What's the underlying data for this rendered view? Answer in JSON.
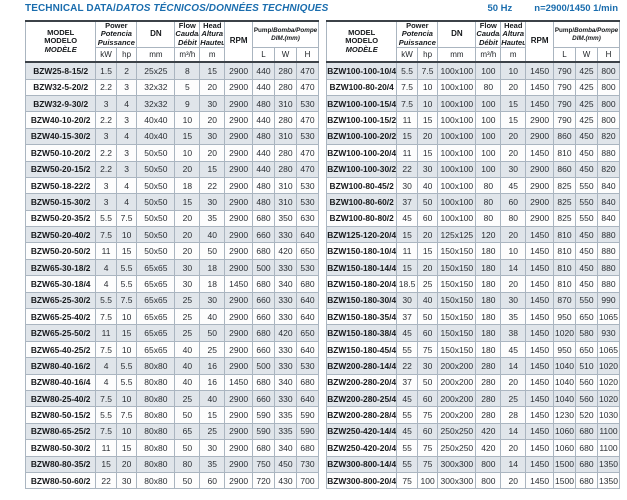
{
  "title": {
    "en": "TECHNICAL DATA/",
    "intl": "DATOS TÉCNICOS/DONNÉES TECHNIQUES"
  },
  "notes": {
    "frequency": "50 Hz",
    "speed": "n=2900/1450 1/min"
  },
  "colors": {
    "accent_blue": "#1a6dae",
    "row_stripe": "#e0e5ea",
    "border_light": "#aab5c0",
    "border_dark": "#3c4248"
  },
  "columns": {
    "model": {
      "l1": "MODEL",
      "l2": "MODELO",
      "l3": "MODÈLE"
    },
    "power": {
      "l1": "Power",
      "l2": "Potencia",
      "l3": "Puissance",
      "units": [
        "kW",
        "hp"
      ]
    },
    "dn": {
      "label": "DN",
      "unit": "mm"
    },
    "flow": {
      "l1": "Flow",
      "l2": "Caudal",
      "l3": "Débit",
      "unit": "m³/h"
    },
    "head": {
      "l1": "Head",
      "l2": "Altura",
      "l3": "Hauteur",
      "unit": "m"
    },
    "rpm": {
      "label": "RPM"
    },
    "dim": {
      "en": "Pump/",
      "intl": "Bomba/Pompe",
      "l2": "DIM.(mm)",
      "units": [
        "L",
        "W",
        "H"
      ]
    }
  },
  "tables": [
    {
      "id": "left",
      "rows": [
        [
          "BZW25-8-15/2",
          "1.5",
          "2",
          "25x25",
          "8",
          "15",
          "2900",
          "440",
          "280",
          "470"
        ],
        [
          "BZW32-5-20/2",
          "2.2",
          "3",
          "32x32",
          "5",
          "20",
          "2900",
          "440",
          "280",
          "470"
        ],
        [
          "BZW32-9-30/2",
          "3",
          "4",
          "32x32",
          "9",
          "30",
          "2900",
          "480",
          "310",
          "530"
        ],
        [
          "BZW40-10-20/2",
          "2.2",
          "3",
          "40x40",
          "10",
          "20",
          "2900",
          "440",
          "280",
          "470"
        ],
        [
          "BZW40-15-30/2",
          "3",
          "4",
          "40x40",
          "15",
          "30",
          "2900",
          "480",
          "310",
          "530"
        ],
        [
          "BZW50-10-20/2",
          "2.2",
          "3",
          "50x50",
          "10",
          "20",
          "2900",
          "440",
          "280",
          "470"
        ],
        [
          "BZW50-20-15/2",
          "2.2",
          "3",
          "50x50",
          "20",
          "15",
          "2900",
          "440",
          "280",
          "470"
        ],
        [
          "BZW50-18-22/2",
          "3",
          "4",
          "50x50",
          "18",
          "22",
          "2900",
          "480",
          "310",
          "530"
        ],
        [
          "BZW50-15-30/2",
          "3",
          "4",
          "50x50",
          "15",
          "30",
          "2900",
          "480",
          "310",
          "530"
        ],
        [
          "BZW50-20-35/2",
          "5.5",
          "7.5",
          "50x50",
          "20",
          "35",
          "2900",
          "680",
          "350",
          "630"
        ],
        [
          "BZW50-20-40/2",
          "7.5",
          "10",
          "50x50",
          "20",
          "40",
          "2900",
          "660",
          "330",
          "640"
        ],
        [
          "BZW50-20-50/2",
          "11",
          "15",
          "50x50",
          "20",
          "50",
          "2900",
          "680",
          "420",
          "650"
        ],
        [
          "BZW65-30-18/2",
          "4",
          "5.5",
          "65x65",
          "30",
          "18",
          "2900",
          "500",
          "330",
          "530"
        ],
        [
          "BZW65-30-18/4",
          "4",
          "5.5",
          "65x65",
          "30",
          "18",
          "1450",
          "680",
          "340",
          "680"
        ],
        [
          "BZW65-25-30/2",
          "5.5",
          "7.5",
          "65x65",
          "25",
          "30",
          "2900",
          "660",
          "330",
          "640"
        ],
        [
          "BZW65-25-40/2",
          "7.5",
          "10",
          "65x65",
          "25",
          "40",
          "2900",
          "660",
          "330",
          "640"
        ],
        [
          "BZW65-25-50/2",
          "11",
          "15",
          "65x65",
          "25",
          "50",
          "2900",
          "680",
          "420",
          "650"
        ],
        [
          "BZW65-40-25/2",
          "7.5",
          "10",
          "65x65",
          "40",
          "25",
          "2900",
          "660",
          "330",
          "640"
        ],
        [
          "BZW80-40-16/2",
          "4",
          "5.5",
          "80x80",
          "40",
          "16",
          "2900",
          "500",
          "330",
          "530"
        ],
        [
          "BZW80-40-16/4",
          "4",
          "5.5",
          "80x80",
          "40",
          "16",
          "1450",
          "680",
          "340",
          "680"
        ],
        [
          "BZW80-25-40/2",
          "7.5",
          "10",
          "80x80",
          "25",
          "40",
          "2900",
          "660",
          "330",
          "640"
        ],
        [
          "BZW80-50-15/2",
          "5.5",
          "7.5",
          "80x80",
          "50",
          "15",
          "2900",
          "590",
          "335",
          "590"
        ],
        [
          "BZW80-65-25/2",
          "7.5",
          "10",
          "80x80",
          "65",
          "25",
          "2900",
          "590",
          "335",
          "590"
        ],
        [
          "BZW80-50-30/2",
          "11",
          "15",
          "80x80",
          "50",
          "30",
          "2900",
          "680",
          "340",
          "680"
        ],
        [
          "BZW80-80-35/2",
          "15",
          "20",
          "80x80",
          "80",
          "35",
          "2900",
          "750",
          "450",
          "730"
        ],
        [
          "BZW80-50-60/2",
          "22",
          "30",
          "80x80",
          "50",
          "60",
          "2900",
          "720",
          "430",
          "700"
        ]
      ]
    },
    {
      "id": "right",
      "rows": [
        [
          "BZW100-100-10/4",
          "5.5",
          "7.5",
          "100x100",
          "100",
          "10",
          "1450",
          "790",
          "425",
          "800"
        ],
        [
          "BZW100-80-20/4",
          "7.5",
          "10",
          "100x100",
          "80",
          "20",
          "1450",
          "790",
          "425",
          "800"
        ],
        [
          "BZW100-100-15/4",
          "7.5",
          "10",
          "100x100",
          "100",
          "15",
          "1450",
          "790",
          "425",
          "800"
        ],
        [
          "BZW100-100-15/2",
          "11",
          "15",
          "100x100",
          "100",
          "15",
          "2900",
          "790",
          "425",
          "800"
        ],
        [
          "BZW100-100-20/2",
          "15",
          "20",
          "100x100",
          "100",
          "20",
          "2900",
          "860",
          "450",
          "820"
        ],
        [
          "BZW100-100-20/4",
          "11",
          "15",
          "100x100",
          "100",
          "20",
          "1450",
          "810",
          "450",
          "880"
        ],
        [
          "BZW100-100-30/2",
          "22",
          "30",
          "100x100",
          "100",
          "30",
          "2900",
          "860",
          "450",
          "820"
        ],
        [
          "BZW100-80-45/2",
          "30",
          "40",
          "100x100",
          "80",
          "45",
          "2900",
          "825",
          "550",
          "840"
        ],
        [
          "BZW100-80-60/2",
          "37",
          "50",
          "100x100",
          "80",
          "60",
          "2900",
          "825",
          "550",
          "840"
        ],
        [
          "BZW100-80-80/2",
          "45",
          "60",
          "100x100",
          "80",
          "80",
          "2900",
          "825",
          "550",
          "840"
        ],
        [
          "BZW125-120-20/4",
          "15",
          "20",
          "125x125",
          "120",
          "20",
          "1450",
          "810",
          "450",
          "880"
        ],
        [
          "BZW150-180-10/4",
          "11",
          "15",
          "150x150",
          "180",
          "10",
          "1450",
          "810",
          "450",
          "880"
        ],
        [
          "BZW150-180-14/4",
          "15",
          "20",
          "150x150",
          "180",
          "14",
          "1450",
          "810",
          "450",
          "880"
        ],
        [
          "BZW150-180-20/4",
          "18.5",
          "25",
          "150x150",
          "180",
          "20",
          "1450",
          "810",
          "450",
          "880"
        ],
        [
          "BZW150-180-30/4",
          "30",
          "40",
          "150x150",
          "180",
          "30",
          "1450",
          "870",
          "550",
          "990"
        ],
        [
          "BZW150-180-35/4",
          "37",
          "50",
          "150x150",
          "180",
          "35",
          "1450",
          "950",
          "650",
          "1065"
        ],
        [
          "BZW150-180-38/4",
          "45",
          "60",
          "150x150",
          "180",
          "38",
          "1450",
          "1020",
          "580",
          "930"
        ],
        [
          "BZW150-180-45/4",
          "55",
          "75",
          "150x150",
          "180",
          "45",
          "1450",
          "950",
          "650",
          "1065"
        ],
        [
          "BZW200-280-14/4",
          "22",
          "30",
          "200x200",
          "280",
          "14",
          "1450",
          "1040",
          "510",
          "1020"
        ],
        [
          "BZW200-280-20/4",
          "37",
          "50",
          "200x200",
          "280",
          "20",
          "1450",
          "1040",
          "560",
          "1020"
        ],
        [
          "BZW200-280-25/4",
          "45",
          "60",
          "200x200",
          "280",
          "25",
          "1450",
          "1040",
          "560",
          "1020"
        ],
        [
          "BZW200-280-28/4",
          "55",
          "75",
          "200x200",
          "280",
          "28",
          "1450",
          "1230",
          "520",
          "1030"
        ],
        [
          "BZW250-420-14/4",
          "45",
          "60",
          "250x250",
          "420",
          "14",
          "1450",
          "1060",
          "680",
          "1100"
        ],
        [
          "BZW250-420-20/4",
          "55",
          "75",
          "250x250",
          "420",
          "20",
          "1450",
          "1060",
          "680",
          "1100"
        ],
        [
          "BZW300-800-14/4",
          "55",
          "75",
          "300x300",
          "800",
          "14",
          "1450",
          "1500",
          "680",
          "1350"
        ],
        [
          "BZW300-800-20/4",
          "75",
          "100",
          "300x300",
          "800",
          "20",
          "1450",
          "1500",
          "680",
          "1350"
        ]
      ]
    }
  ]
}
